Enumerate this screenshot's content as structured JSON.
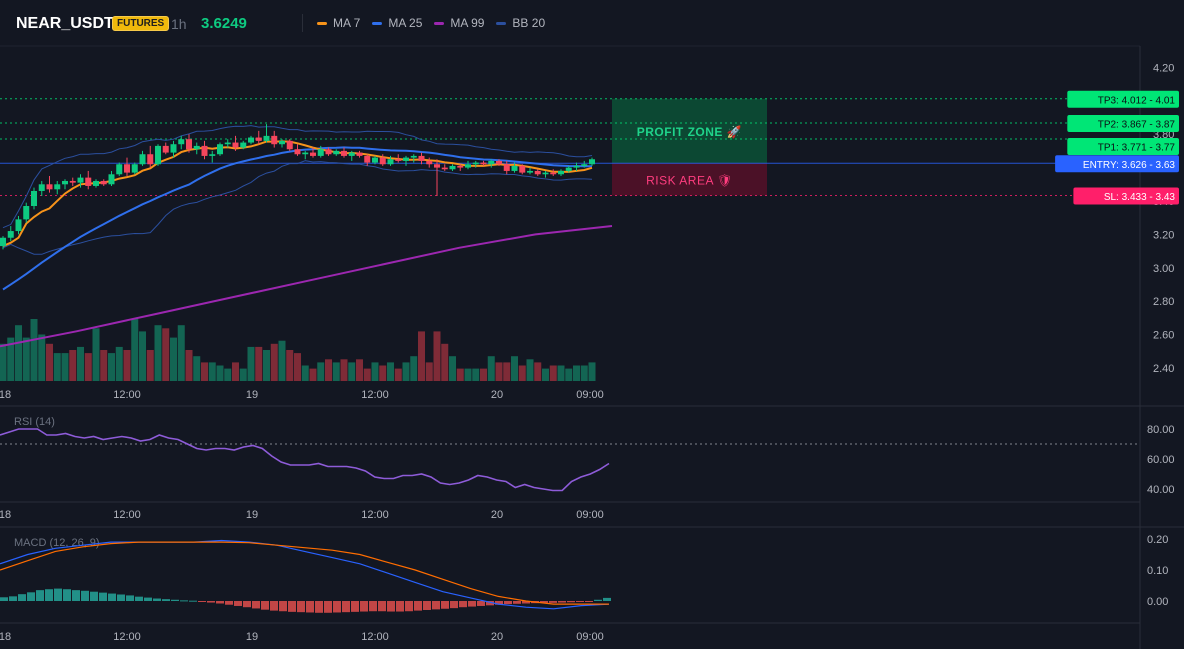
{
  "header": {
    "symbol": "NEAR_USDT",
    "badge": "FUTURES",
    "interval": "1h",
    "last_price": "3.6249",
    "legend": [
      {
        "label": "MA 7",
        "color": "#f7931a"
      },
      {
        "label": "MA 25",
        "color": "#2f6fec"
      },
      {
        "label": "MA 99",
        "color": "#9c27b0"
      },
      {
        "label": "BB 20",
        "color": "#2b4f9e"
      }
    ]
  },
  "zones": {
    "profit_label": "PROFIT ZONE 🚀",
    "risk_label": "RISK AREA 🛡",
    "tp_top": 4.012,
    "entry": 3.626,
    "sl": 3.433
  },
  "levels": [
    {
      "tag": "TP3: 4.012 - 4.01",
      "value": 4.012,
      "color": "#00e676",
      "text_color": "#0b0e14"
    },
    {
      "tag": "TP2: 3.867 - 3.87",
      "value": 3.867,
      "color": "#00e676",
      "text_color": "#0b0e14"
    },
    {
      "tag": "TP1: 3.771 - 3.77",
      "value": 3.771,
      "color": "#00e676",
      "text_color": "#0b0e14"
    },
    {
      "tag": "ENTRY: 3.626 - 3.63",
      "value": 3.626,
      "color": "#2962ff",
      "text_color": "#ffffff"
    },
    {
      "tag": "SL: 3.433 - 3.43",
      "value": 3.433,
      "color": "#ff1f6a",
      "text_color": "#ffffff"
    }
  ],
  "chart_data": [
    {
      "type": "candlestick",
      "title": "NEAR_USDT",
      "x_labels": [
        "18",
        "12:00",
        "19",
        "12:00",
        "20",
        "09:00"
      ],
      "y_ticks": [
        "4.20",
        "4.00",
        "3.80",
        "3.60",
        "3.40",
        "3.20",
        "3.00",
        "2.80",
        "2.60",
        "2.40"
      ],
      "ylim": [
        2.35,
        4.25
      ],
      "candles": [
        [
          3.13,
          3.19,
          3.11,
          3.18
        ],
        [
          3.18,
          3.25,
          3.16,
          3.22
        ],
        [
          3.22,
          3.31,
          3.2,
          3.29
        ],
        [
          3.29,
          3.39,
          3.27,
          3.37
        ],
        [
          3.37,
          3.48,
          3.35,
          3.46
        ],
        [
          3.46,
          3.52,
          3.43,
          3.5
        ],
        [
          3.5,
          3.55,
          3.45,
          3.47
        ],
        [
          3.47,
          3.52,
          3.44,
          3.5
        ],
        [
          3.5,
          3.53,
          3.47,
          3.52
        ],
        [
          3.52,
          3.54,
          3.49,
          3.51
        ],
        [
          3.51,
          3.56,
          3.48,
          3.54
        ],
        [
          3.54,
          3.58,
          3.47,
          3.49
        ],
        [
          3.49,
          3.53,
          3.48,
          3.52
        ],
        [
          3.52,
          3.53,
          3.49,
          3.5
        ],
        [
          3.5,
          3.58,
          3.49,
          3.56
        ],
        [
          3.56,
          3.63,
          3.55,
          3.62
        ],
        [
          3.62,
          3.66,
          3.55,
          3.57
        ],
        [
          3.57,
          3.63,
          3.56,
          3.62
        ],
        [
          3.62,
          3.7,
          3.61,
          3.68
        ],
        [
          3.68,
          3.73,
          3.6,
          3.62
        ],
        [
          3.62,
          3.74,
          3.61,
          3.73
        ],
        [
          3.73,
          3.75,
          3.68,
          3.69
        ],
        [
          3.69,
          3.76,
          3.66,
          3.74
        ],
        [
          3.74,
          3.79,
          3.71,
          3.77
        ],
        [
          3.77,
          3.8,
          3.69,
          3.71
        ],
        [
          3.71,
          3.75,
          3.68,
          3.73
        ],
        [
          3.73,
          3.76,
          3.65,
          3.67
        ],
        [
          3.67,
          3.7,
          3.63,
          3.68
        ],
        [
          3.68,
          3.75,
          3.67,
          3.74
        ],
        [
          3.74,
          3.77,
          3.72,
          3.75
        ],
        [
          3.75,
          3.79,
          3.7,
          3.72
        ],
        [
          3.72,
          3.76,
          3.71,
          3.75
        ],
        [
          3.75,
          3.79,
          3.74,
          3.78
        ],
        [
          3.78,
          3.82,
          3.74,
          3.76
        ],
        [
          3.76,
          3.86,
          3.75,
          3.79
        ],
        [
          3.79,
          3.82,
          3.72,
          3.74
        ],
        [
          3.74,
          3.77,
          3.72,
          3.76
        ],
        [
          3.76,
          3.77,
          3.7,
          3.71
        ],
        [
          3.71,
          3.74,
          3.67,
          3.68
        ],
        [
          3.68,
          3.7,
          3.65,
          3.69
        ],
        [
          3.69,
          3.72,
          3.66,
          3.67
        ],
        [
          3.67,
          3.73,
          3.66,
          3.71
        ],
        [
          3.71,
          3.72,
          3.67,
          3.68
        ],
        [
          3.68,
          3.71,
          3.67,
          3.7
        ],
        [
          3.7,
          3.72,
          3.66,
          3.67
        ],
        [
          3.67,
          3.7,
          3.64,
          3.69
        ],
        [
          3.69,
          3.7,
          3.66,
          3.67
        ],
        [
          3.67,
          3.68,
          3.61,
          3.63
        ],
        [
          3.63,
          3.67,
          3.62,
          3.66
        ],
        [
          3.66,
          3.68,
          3.61,
          3.62
        ],
        [
          3.62,
          3.67,
          3.61,
          3.65
        ],
        [
          3.65,
          3.68,
          3.63,
          3.64
        ],
        [
          3.64,
          3.67,
          3.61,
          3.66
        ],
        [
          3.66,
          3.68,
          3.63,
          3.67
        ],
        [
          3.67,
          3.69,
          3.62,
          3.64
        ],
        [
          3.64,
          3.66,
          3.6,
          3.62
        ],
        [
          3.62,
          3.65,
          3.43,
          3.6
        ],
        [
          3.6,
          3.62,
          3.58,
          3.59
        ],
        [
          3.59,
          3.62,
          3.58,
          3.61
        ],
        [
          3.61,
          3.62,
          3.58,
          3.6
        ],
        [
          3.6,
          3.64,
          3.59,
          3.62
        ],
        [
          3.62,
          3.64,
          3.6,
          3.63
        ],
        [
          3.63,
          3.64,
          3.61,
          3.62
        ],
        [
          3.62,
          3.65,
          3.6,
          3.64
        ],
        [
          3.64,
          3.65,
          3.61,
          3.62
        ],
        [
          3.62,
          3.64,
          3.56,
          3.58
        ],
        [
          3.58,
          3.63,
          3.57,
          3.61
        ],
        [
          3.61,
          3.62,
          3.56,
          3.57
        ],
        [
          3.57,
          3.6,
          3.56,
          3.58
        ],
        [
          3.58,
          3.59,
          3.55,
          3.56
        ],
        [
          3.56,
          3.58,
          3.54,
          3.57
        ],
        [
          3.57,
          3.59,
          3.55,
          3.56
        ],
        [
          3.56,
          3.59,
          3.55,
          3.58
        ],
        [
          3.58,
          3.61,
          3.57,
          3.6
        ],
        [
          3.6,
          3.63,
          3.58,
          3.61
        ],
        [
          3.61,
          3.64,
          3.6,
          3.62
        ],
        [
          3.62,
          3.66,
          3.61,
          3.65
        ]
      ],
      "volume": [
        0.6,
        0.7,
        0.9,
        0.7,
        1.0,
        0.75,
        0.6,
        0.45,
        0.45,
        0.5,
        0.55,
        0.45,
        0.85,
        0.5,
        0.45,
        0.55,
        0.5,
        1.0,
        0.8,
        0.5,
        0.9,
        0.85,
        0.7,
        0.9,
        0.5,
        0.4,
        0.3,
        0.3,
        0.25,
        0.2,
        0.3,
        0.2,
        0.55,
        0.55,
        0.5,
        0.6,
        0.65,
        0.5,
        0.45,
        0.25,
        0.2,
        0.3,
        0.35,
        0.3,
        0.35,
        0.3,
        0.35,
        0.2,
        0.3,
        0.25,
        0.3,
        0.2,
        0.3,
        0.4,
        0.8,
        0.3,
        0.8,
        0.6,
        0.4,
        0.2,
        0.2,
        0.2,
        0.2,
        0.4,
        0.3,
        0.3,
        0.4,
        0.25,
        0.35,
        0.3,
        0.2,
        0.25,
        0.25,
        0.2,
        0.25,
        0.25,
        0.3
      ],
      "series": [
        {
          "name": "MA 7",
          "color": "#f7931a"
        },
        {
          "name": "MA 25",
          "color": "#2f6fec"
        },
        {
          "name": "MA 99",
          "color": "#9c27b0",
          "values": [
            2.53,
            2.62,
            2.72,
            2.82,
            2.92,
            3.02,
            3.12,
            3.2,
            3.25
          ]
        },
        {
          "name": "BB 20",
          "color": "#2b4f9e"
        }
      ]
    },
    {
      "type": "line",
      "title": "RSI (14)",
      "y_ticks": [
        "80.00",
        "60.00",
        "40.00"
      ],
      "ylim": [
        30,
        90
      ],
      "reference_line": 70,
      "x_labels": [
        "18",
        "12:00",
        "19",
        "12:00",
        "20",
        "09:00"
      ],
      "values": [
        76,
        78,
        80,
        80,
        80,
        76,
        76,
        77,
        75,
        74,
        75,
        73,
        74,
        75,
        74,
        72,
        73,
        76,
        74,
        73,
        70,
        67,
        66,
        67,
        67,
        66,
        68,
        69,
        67,
        62,
        58,
        56,
        56,
        56,
        57,
        55,
        55,
        55,
        54,
        52,
        48,
        47,
        47,
        49,
        49,
        50,
        48,
        44,
        43,
        44,
        46,
        49,
        48,
        46,
        45,
        41,
        43,
        41,
        40,
        39,
        39,
        45,
        48,
        50,
        53,
        57
      ],
      "color": "#8e5cd9"
    },
    {
      "type": "bar",
      "title": "MACD (12, 26, 9)",
      "y_ticks": [
        "0.20",
        "0.10",
        "0.00"
      ],
      "ylim": [
        -0.06,
        0.23
      ],
      "x_labels": [
        "18",
        "12:00",
        "19",
        "12:00",
        "20",
        "09:00"
      ],
      "histogram": [
        0.012,
        0.015,
        0.022,
        0.028,
        0.035,
        0.038,
        0.04,
        0.038,
        0.035,
        0.033,
        0.03,
        0.027,
        0.024,
        0.021,
        0.018,
        0.014,
        0.011,
        0.008,
        0.006,
        0.004,
        0.002,
        0.001,
        -0.002,
        -0.005,
        -0.008,
        -0.012,
        -0.016,
        -0.02,
        -0.024,
        -0.028,
        -0.031,
        -0.033,
        -0.035,
        -0.036,
        -0.037,
        -0.038,
        -0.038,
        -0.037,
        -0.036,
        -0.035,
        -0.034,
        -0.033,
        -0.033,
        -0.034,
        -0.034,
        -0.033,
        -0.031,
        -0.029,
        -0.027,
        -0.025,
        -0.023,
        -0.02,
        -0.018,
        -0.016,
        -0.014,
        -0.012,
        -0.01,
        -0.009,
        -0.008,
        -0.007,
        -0.006,
        -0.006,
        -0.005,
        -0.004,
        -0.003,
        -0.002,
        0.004,
        0.01
      ],
      "series": [
        {
          "name": "MACD",
          "color": "#2962ff",
          "values": [
            0.12,
            0.15,
            0.17,
            0.18,
            0.19,
            0.19,
            0.19,
            0.19,
            0.195,
            0.19,
            0.18,
            0.16,
            0.14,
            0.12,
            0.09,
            0.06,
            0.03,
            0.01,
            -0.01,
            -0.02,
            -0.025,
            -0.015,
            -0.01
          ]
        },
        {
          "name": "Signal",
          "color": "#ff6d00",
          "values": [
            0.1,
            0.13,
            0.16,
            0.175,
            0.185,
            0.19,
            0.19,
            0.19,
            0.19,
            0.188,
            0.18,
            0.172,
            0.164,
            0.15,
            0.125,
            0.1,
            0.07,
            0.04,
            0.015,
            0.0,
            -0.01,
            -0.01,
            -0.01
          ]
        }
      ]
    }
  ]
}
